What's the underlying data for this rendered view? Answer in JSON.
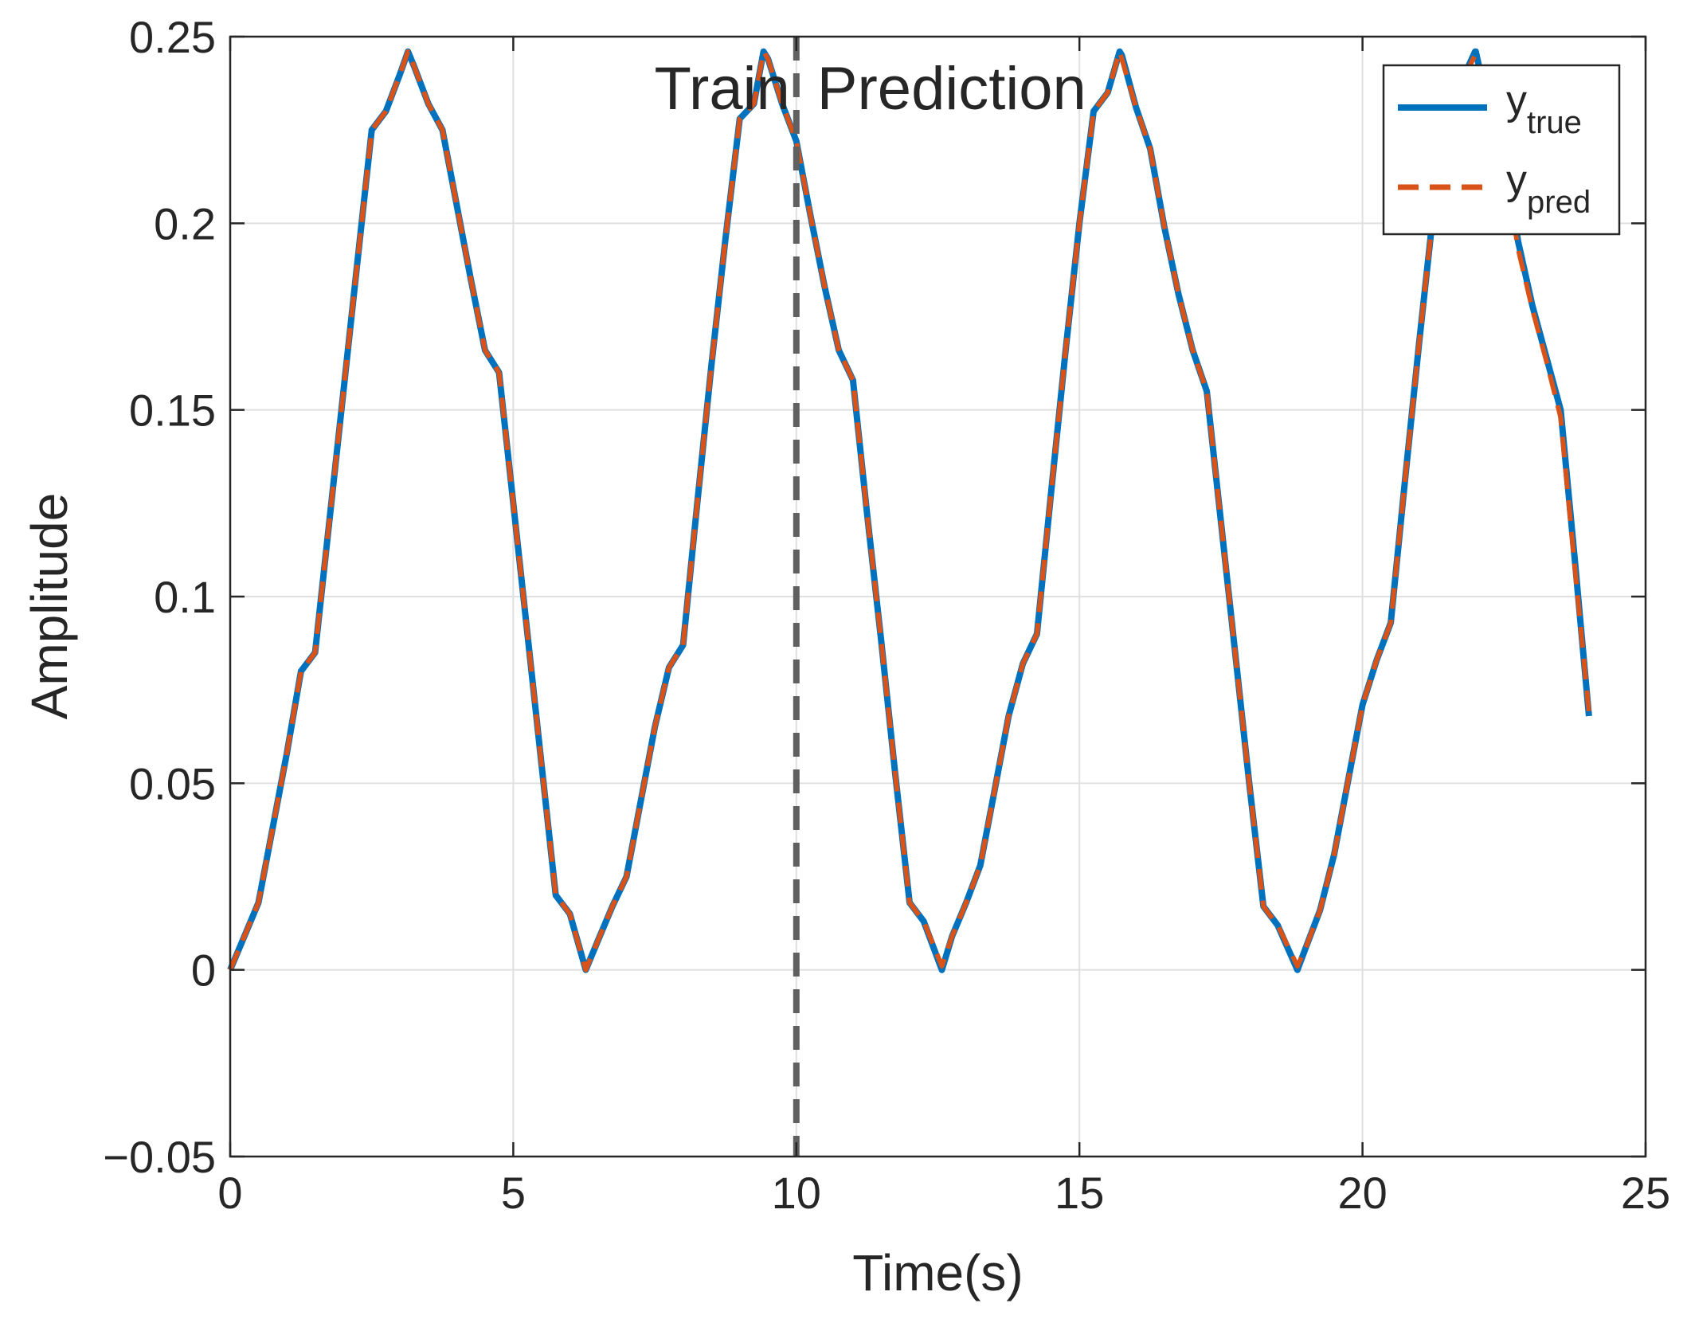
{
  "chart_data": {
    "type": "line",
    "xlabel": "Time(s)",
    "ylabel": "Amplitude",
    "xlim": [
      0,
      25
    ],
    "ylim": [
      -0.05,
      0.25
    ],
    "xticks": [
      0,
      5,
      10,
      15,
      20,
      25
    ],
    "xtick_labels": [
      "0",
      "5",
      "10",
      "15",
      "20",
      "25"
    ],
    "yticks": [
      -0.05,
      0,
      0.05,
      0.1,
      0.15,
      0.2,
      0.25
    ],
    "ytick_labels": [
      "−0.05",
      "0",
      "0.05",
      "0.1",
      "0.15",
      "0.2",
      "0.25"
    ],
    "grid": true,
    "legend_position": "top-right",
    "split_x": 10,
    "annotations": {
      "train": "Train",
      "prediction": "Prediction"
    },
    "series": [
      {
        "name": "y",
        "name_sub": "true",
        "color": "#0072BD",
        "style": "solid",
        "x": [
          0,
          0.25,
          0.5,
          0.75,
          1.0,
          1.25,
          1.5,
          1.75,
          2.0,
          2.25,
          2.5,
          2.75,
          3.0,
          3.14,
          3.25,
          3.5,
          3.75,
          4.0,
          4.25,
          4.5,
          4.75,
          5.0,
          5.25,
          5.5,
          5.75,
          6.0,
          6.28,
          6.5,
          6.75,
          7.0,
          7.25,
          7.5,
          7.75,
          8.0,
          8.25,
          8.5,
          8.75,
          9.0,
          9.25,
          9.42,
          9.5,
          9.75,
          10.0,
          10.25,
          10.5,
          10.75,
          11.0,
          11.25,
          11.5,
          11.75,
          12.0,
          12.25,
          12.57,
          12.75,
          13.0,
          13.25,
          13.5,
          13.75,
          14.0,
          14.25,
          14.5,
          14.75,
          15.0,
          15.25,
          15.5,
          15.71,
          15.75,
          16.0,
          16.25,
          16.5,
          16.75,
          17.0,
          17.25,
          17.5,
          17.75,
          18.0,
          18.25,
          18.5,
          18.85,
          19.0,
          19.25,
          19.5,
          19.75,
          20.0,
          20.25,
          20.5,
          20.75,
          21.0,
          21.25,
          21.5,
          21.75,
          21.99,
          22.0,
          22.25,
          22.5,
          22.75,
          23.0,
          23.25,
          23.5,
          23.75,
          24.0
        ],
        "y": [
          0,
          0.009,
          0.018,
          0.038,
          0.058,
          0.08,
          0.085,
          0.12,
          0.155,
          0.19,
          0.225,
          0.23,
          0.24,
          0.246,
          0.242,
          0.232,
          0.225,
          0.205,
          0.185,
          0.166,
          0.16,
          0.125,
          0.09,
          0.055,
          0.02,
          0.015,
          0,
          0.008,
          0.017,
          0.025,
          0.045,
          0.065,
          0.081,
          0.087,
          0.125,
          0.162,
          0.196,
          0.228,
          0.232,
          0.246,
          0.244,
          0.232,
          0.222,
          0.202,
          0.183,
          0.166,
          0.158,
          0.122,
          0.088,
          0.052,
          0.018,
          0.013,
          0,
          0.009,
          0.018,
          0.028,
          0.048,
          0.068,
          0.082,
          0.09,
          0.128,
          0.165,
          0.2,
          0.23,
          0.235,
          0.246,
          0.245,
          0.231,
          0.22,
          0.199,
          0.181,
          0.166,
          0.155,
          0.12,
          0.085,
          0.05,
          0.017,
          0.012,
          0,
          0.006,
          0.016,
          0.031,
          0.051,
          0.071,
          0.083,
          0.093,
          0.131,
          0.168,
          0.203,
          0.232,
          0.238,
          0.246,
          0.246,
          0.229,
          0.218,
          0.195,
          0.178,
          0.164,
          0.15,
          0.11,
          0.068
        ]
      },
      {
        "name": "y",
        "name_sub": "pred",
        "color": "#D95319",
        "style": "dashed",
        "x": [
          0,
          0.25,
          0.5,
          0.75,
          1.0,
          1.25,
          1.5,
          1.75,
          2.0,
          2.25,
          2.5,
          2.75,
          3.0,
          3.14,
          3.25,
          3.5,
          3.75,
          4.0,
          4.25,
          4.5,
          4.75,
          5.0,
          5.25,
          5.5,
          5.75,
          6.0,
          6.28,
          6.5,
          6.75,
          7.0,
          7.25,
          7.5,
          7.75,
          8.0,
          8.25,
          8.5,
          8.75,
          9.0,
          9.25,
          9.42,
          9.5,
          9.75,
          10.0,
          10.25,
          10.5,
          10.75,
          11.0,
          11.25,
          11.5,
          11.75,
          12.0,
          12.25,
          12.57,
          12.75,
          13.0,
          13.25,
          13.5,
          13.75,
          14.0,
          14.25,
          14.5,
          14.75,
          15.0,
          15.25,
          15.5,
          15.71,
          15.75,
          16.0,
          16.25,
          16.5,
          16.75,
          17.0,
          17.25,
          17.5,
          17.75,
          18.0,
          18.25,
          18.5,
          18.85,
          19.0,
          19.25,
          19.5,
          19.75,
          20.0,
          20.25,
          20.5,
          20.75,
          21.0,
          21.25,
          21.5,
          21.75,
          21.99,
          22.0,
          22.25,
          22.5,
          22.75,
          23.0,
          23.25,
          23.5,
          23.75,
          24.0
        ],
        "y": [
          0,
          0.009,
          0.018,
          0.038,
          0.058,
          0.08,
          0.085,
          0.12,
          0.155,
          0.19,
          0.225,
          0.23,
          0.24,
          0.246,
          0.242,
          0.232,
          0.225,
          0.205,
          0.185,
          0.166,
          0.16,
          0.125,
          0.09,
          0.055,
          0.02,
          0.015,
          0,
          0.008,
          0.017,
          0.025,
          0.045,
          0.065,
          0.081,
          0.087,
          0.125,
          0.162,
          0.196,
          0.228,
          0.232,
          0.246,
          0.244,
          0.232,
          0.222,
          0.202,
          0.183,
          0.166,
          0.158,
          0.122,
          0.088,
          0.052,
          0.018,
          0.013,
          0.001,
          0.009,
          0.018,
          0.028,
          0.048,
          0.068,
          0.082,
          0.09,
          0.128,
          0.165,
          0.2,
          0.23,
          0.235,
          0.246,
          0.244,
          0.231,
          0.22,
          0.199,
          0.181,
          0.166,
          0.155,
          0.12,
          0.085,
          0.05,
          0.017,
          0.012,
          0.001,
          0.006,
          0.016,
          0.031,
          0.051,
          0.071,
          0.083,
          0.093,
          0.131,
          0.168,
          0.203,
          0.232,
          0.238,
          0.245,
          0.244,
          0.229,
          0.217,
          0.193,
          0.177,
          0.163,
          0.148,
          0.108,
          0.069
        ]
      }
    ]
  }
}
